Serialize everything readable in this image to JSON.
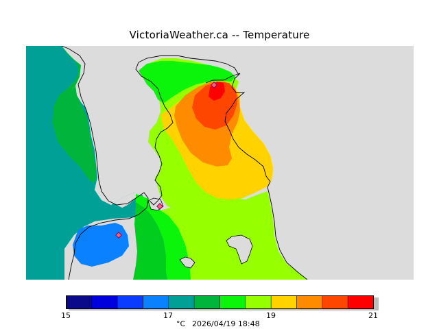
{
  "title": "VictoriaWeather.ca -- Temperature",
  "colorbar": {
    "colors": [
      "#0a0a8a",
      "#0000dd",
      "#0a3cff",
      "#0a82ff",
      "#00a096",
      "#00b43c",
      "#00cd1e",
      "#0af50a",
      "#96ff00",
      "#ffd200",
      "#ff8c00",
      "#ff4600",
      "#ff0000"
    ],
    "tick_labels": [
      "15",
      "17",
      "19",
      "21"
    ],
    "unit": "°C",
    "timestamp": "2026/04/19 18:48"
  },
  "map": {
    "land_color": "#dcdcdc",
    "station_markers": 3
  }
}
